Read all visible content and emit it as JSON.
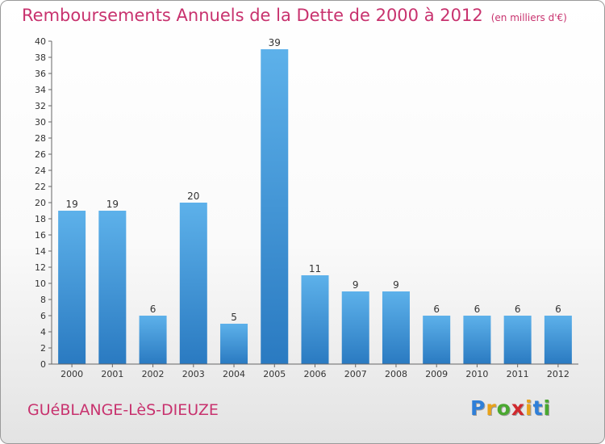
{
  "title": "Remboursements Annuels de la Dette de 2000 à 2012",
  "unit": "(en milliers d'€)",
  "commune": "GUéBLANGE-LèS-DIEUZE",
  "brand": {
    "letters": [
      "P",
      "r",
      "o",
      "x",
      "i",
      "t",
      "i"
    ],
    "colors": [
      "#2f7fd8",
      "#e8a21a",
      "#4aa830",
      "#d0292e",
      "#e8a21a",
      "#2f7fd8",
      "#4aa830"
    ]
  },
  "colors": {
    "bar_top": "#5db1ea",
    "bar_bottom": "#2a7ac1",
    "title": "#c8326e"
  },
  "chart_data": {
    "type": "bar",
    "categories": [
      "2000",
      "2001",
      "2002",
      "2003",
      "2004",
      "2005",
      "2006",
      "2007",
      "2008",
      "2009",
      "2010",
      "2011",
      "2012"
    ],
    "values": [
      19,
      19,
      6,
      20,
      5,
      39,
      11,
      9,
      9,
      6,
      6,
      6,
      6
    ],
    "ylim": [
      0,
      40
    ],
    "ytick_step": 2,
    "grid": false
  }
}
